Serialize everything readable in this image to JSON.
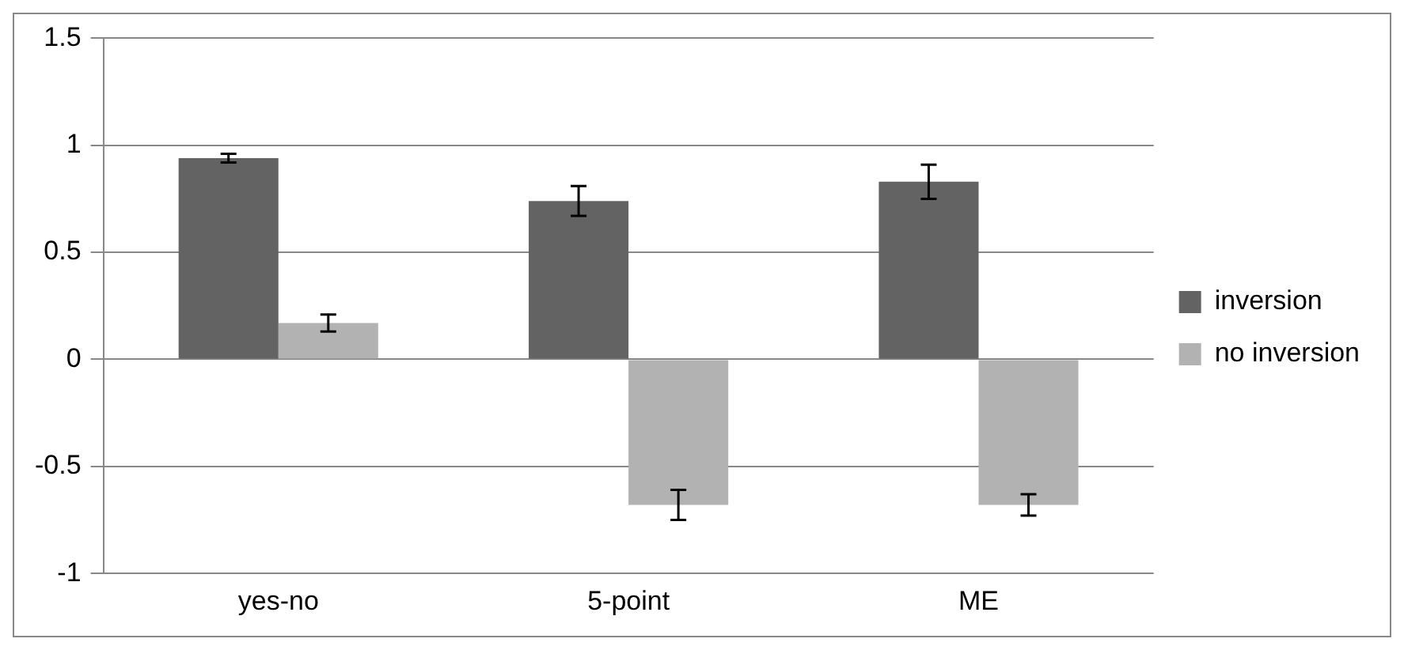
{
  "chart_data": {
    "type": "bar",
    "categories": [
      "yes-no",
      "5-point",
      "ME"
    ],
    "series": [
      {
        "name": "inversion",
        "color": "#636363",
        "values": [
          0.94,
          0.74,
          0.83
        ],
        "errors": [
          0.02,
          0.07,
          0.08
        ]
      },
      {
        "name": "no inversion",
        "color": "#b2b2b2",
        "values": [
          0.17,
          -0.68,
          -0.68
        ],
        "errors": [
          0.04,
          0.07,
          0.05
        ]
      }
    ],
    "ylim": [
      -1,
      1.5
    ],
    "yticks": [
      -1,
      -0.5,
      0,
      0.5,
      1,
      1.5
    ],
    "grid": "y",
    "legend": "right"
  }
}
